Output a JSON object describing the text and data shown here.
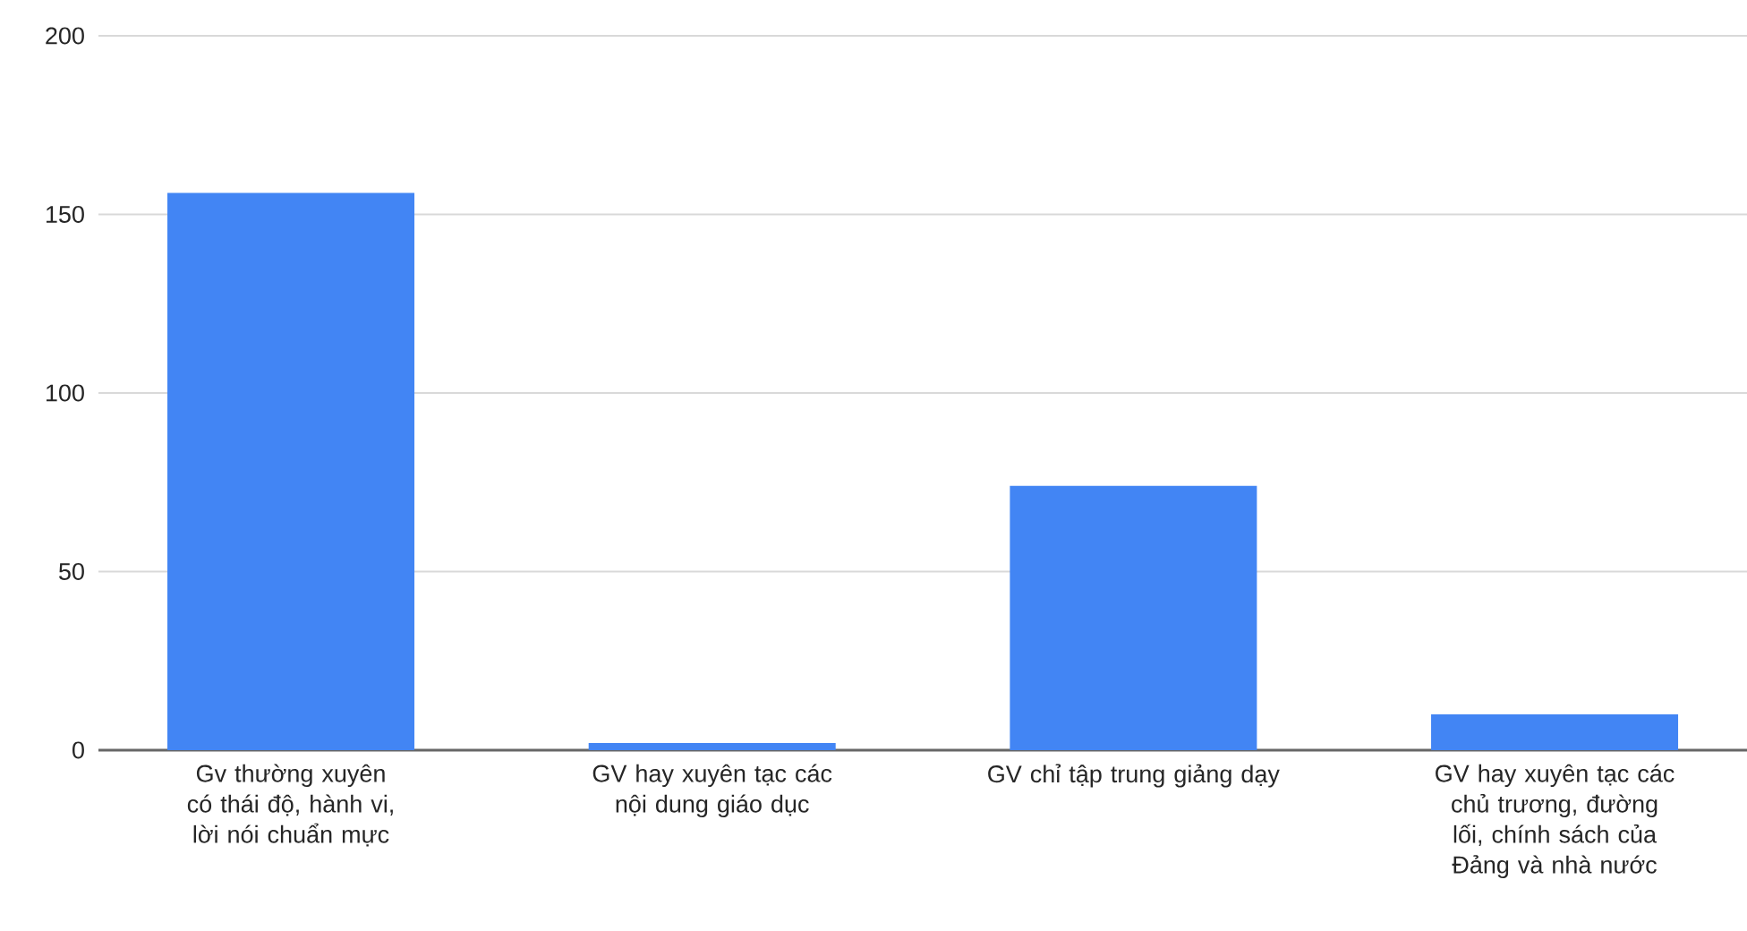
{
  "chart_data": {
    "type": "bar",
    "categories": [
      "Gv thường xuyên có thái độ, hành vi, lời nói chuẩn mực",
      "GV hay xuyên tạc các nội dung giáo dục",
      "GV chỉ tập trung giảng dạy",
      "GV hay xuyên tạc các chủ trương, đường lối, chính sách của Đảng và nhà nước"
    ],
    "values": [
      156,
      2,
      74,
      10
    ],
    "color": "#4285f4",
    "ylim": [
      0,
      200
    ],
    "yticks": [
      0,
      50,
      100,
      150,
      200
    ],
    "grid": "y"
  }
}
